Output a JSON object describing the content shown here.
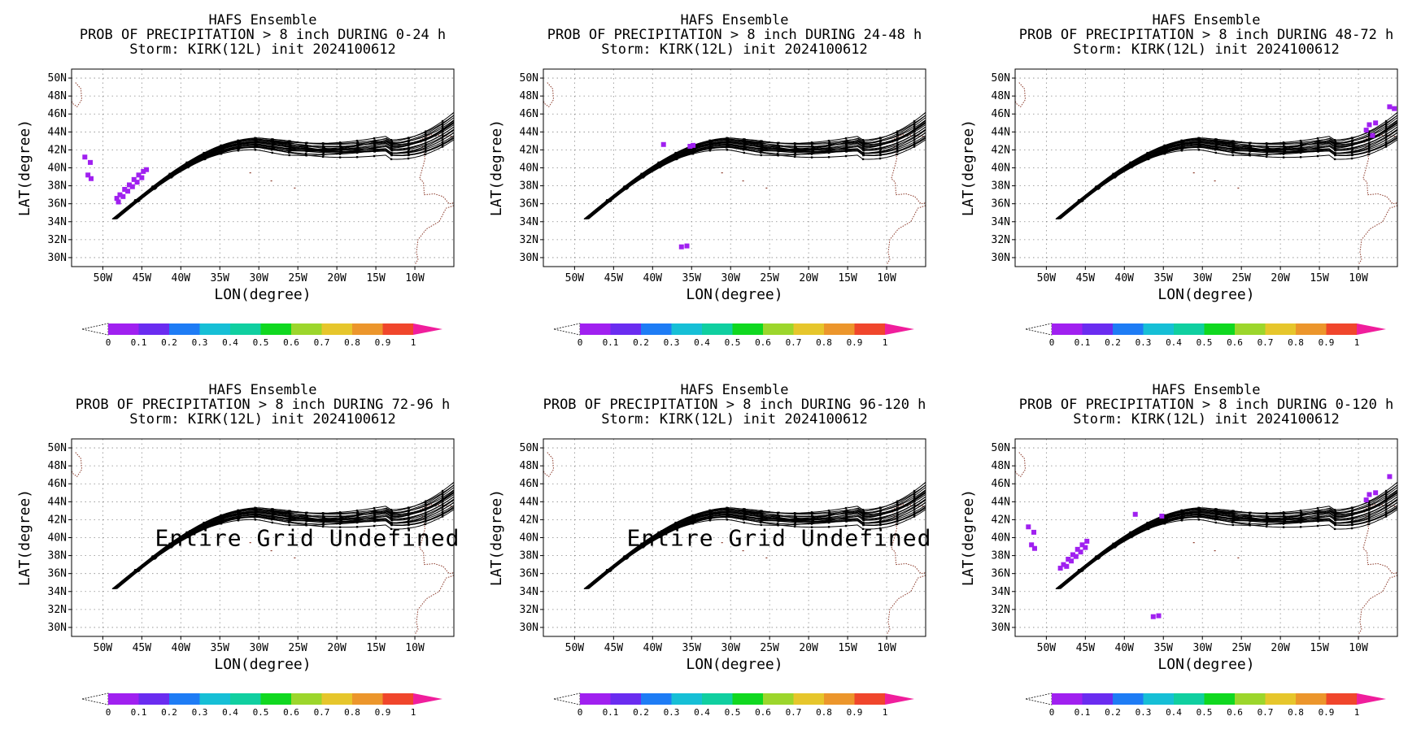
{
  "figure": {
    "bg": "#ffffff",
    "track_color": "#000000",
    "coast_color": "#8b3a2a",
    "grid_color": "#888888",
    "hit_color": "#a020f0"
  },
  "colorbar": {
    "colors": [
      "#a020f0",
      "#6a2cf0",
      "#1e7cf5",
      "#16bfd6",
      "#10cfa0",
      "#10d820",
      "#9cd62c",
      "#e6c62c",
      "#ec962c",
      "#f0462c",
      "#f01e9c"
    ],
    "ticks": [
      "0",
      "0.1",
      "0.2",
      "0.3",
      "0.4",
      "0.5",
      "0.6",
      "0.7",
      "0.8",
      "0.9",
      "1"
    ]
  },
  "chart_data": [
    {
      "type": "heatmap",
      "title": "HAFS Ensemble",
      "subtitle": "PROB OF PRECIPITATION > 8 inch DURING  0-24 h",
      "storm_line": "Storm: KIRK(12L) init 2024100612",
      "xlabel": "LON(degree)",
      "ylabel": "LAT(degree)",
      "x_ticks": [
        "50W",
        "45W",
        "40W",
        "35W",
        "30W",
        "25W",
        "20W",
        "15W",
        "10W"
      ],
      "y_ticks": [
        "50N",
        "48N",
        "46N",
        "44N",
        "42N",
        "40N",
        "38N",
        "36N",
        "34N",
        "32N",
        "30N"
      ],
      "xlim": [
        -54,
        -5
      ],
      "ylim": [
        29,
        51
      ],
      "grid": true,
      "undefined_text": "",
      "prob_points": [
        {
          "lon": -52.3,
          "lat": 41.2,
          "p": 0.05
        },
        {
          "lon": -51.6,
          "lat": 40.6,
          "p": 0.05
        },
        {
          "lon": -51.9,
          "lat": 39.2,
          "p": 0.05
        },
        {
          "lon": -51.5,
          "lat": 38.8,
          "p": 0.05
        },
        {
          "lon": -48.2,
          "lat": 36.6,
          "p": 0.05
        },
        {
          "lon": -47.8,
          "lat": 37.0,
          "p": 0.05
        },
        {
          "lon": -47.2,
          "lat": 37.6,
          "p": 0.05
        },
        {
          "lon": -46.6,
          "lat": 38.1,
          "p": 0.05
        },
        {
          "lon": -46.0,
          "lat": 38.7,
          "p": 0.05
        },
        {
          "lon": -45.4,
          "lat": 39.2,
          "p": 0.05
        },
        {
          "lon": -44.8,
          "lat": 39.6,
          "p": 0.05
        },
        {
          "lon": -47.4,
          "lat": 36.8,
          "p": 0.05
        },
        {
          "lon": -46.8,
          "lat": 37.4,
          "p": 0.05
        },
        {
          "lon": -46.2,
          "lat": 37.9,
          "p": 0.05
        },
        {
          "lon": -45.6,
          "lat": 38.4,
          "p": 0.05
        },
        {
          "lon": -45.0,
          "lat": 38.9,
          "p": 0.05
        },
        {
          "lon": -44.4,
          "lat": 39.8,
          "p": 0.05
        },
        {
          "lon": -48.0,
          "lat": 36.2,
          "p": 0.05
        }
      ]
    },
    {
      "type": "heatmap",
      "title": "HAFS Ensemble",
      "subtitle": "PROB OF PRECIPITATION > 8 inch DURING 24-48 h",
      "storm_line": "Storm: KIRK(12L) init 2024100612",
      "xlabel": "LON(degree)",
      "ylabel": "LAT(degree)",
      "x_ticks": [
        "50W",
        "45W",
        "40W",
        "35W",
        "30W",
        "25W",
        "20W",
        "15W",
        "10W"
      ],
      "y_ticks": [
        "50N",
        "48N",
        "46N",
        "44N",
        "42N",
        "40N",
        "38N",
        "36N",
        "34N",
        "32N",
        "30N"
      ],
      "xlim": [
        -54,
        -5
      ],
      "ylim": [
        29,
        51
      ],
      "grid": true,
      "undefined_text": "",
      "prob_points": [
        {
          "lon": -38.6,
          "lat": 42.6,
          "p": 0.05
        },
        {
          "lon": -35.2,
          "lat": 42.4,
          "p": 0.05
        },
        {
          "lon": -34.8,
          "lat": 42.5,
          "p": 0.05
        },
        {
          "lon": -36.3,
          "lat": 31.2,
          "p": 0.05
        },
        {
          "lon": -35.6,
          "lat": 31.3,
          "p": 0.05
        }
      ]
    },
    {
      "type": "heatmap",
      "title": "HAFS Ensemble",
      "subtitle": "PROB OF PRECIPITATION > 8 inch DURING 48-72 h",
      "storm_line": "Storm: KIRK(12L) init 2024100612",
      "xlabel": "LON(degree)",
      "ylabel": "LAT(degree)",
      "x_ticks": [
        "50W",
        "45W",
        "40W",
        "35W",
        "30W",
        "25W",
        "20W",
        "15W",
        "10W"
      ],
      "y_ticks": [
        "50N",
        "48N",
        "46N",
        "44N",
        "42N",
        "40N",
        "38N",
        "36N",
        "34N",
        "32N",
        "30N"
      ],
      "xlim": [
        -54,
        -5
      ],
      "ylim": [
        29,
        51
      ],
      "grid": true,
      "undefined_text": "",
      "prob_points": [
        {
          "lon": -6.0,
          "lat": 46.8,
          "p": 0.05
        },
        {
          "lon": -5.4,
          "lat": 46.6,
          "p": 0.05
        },
        {
          "lon": -8.6,
          "lat": 44.8,
          "p": 0.05
        },
        {
          "lon": -7.8,
          "lat": 45.0,
          "p": 0.05
        },
        {
          "lon": -9.0,
          "lat": 44.2,
          "p": 0.05
        },
        {
          "lon": -8.2,
          "lat": 43.6,
          "p": 0.05
        }
      ]
    },
    {
      "type": "heatmap",
      "title": "HAFS Ensemble",
      "subtitle": "PROB OF PRECIPITATION > 8 inch DURING 72-96 h",
      "storm_line": "Storm: KIRK(12L) init 2024100612",
      "xlabel": "LON(degree)",
      "ylabel": "LAT(degree)",
      "x_ticks": [
        "50W",
        "45W",
        "40W",
        "35W",
        "30W",
        "25W",
        "20W",
        "15W",
        "10W"
      ],
      "y_ticks": [
        "50N",
        "48N",
        "46N",
        "44N",
        "42N",
        "40N",
        "38N",
        "36N",
        "34N",
        "32N",
        "30N"
      ],
      "xlim": [
        -54,
        -5
      ],
      "ylim": [
        29,
        51
      ],
      "grid": true,
      "undefined_text": "Entire Grid Undefined",
      "prob_points": []
    },
    {
      "type": "heatmap",
      "title": "HAFS Ensemble",
      "subtitle": "PROB OF PRECIPITATION > 8 inch DURING 96-120 h",
      "storm_line": "Storm: KIRK(12L) init 2024100612",
      "xlabel": "LON(degree)",
      "ylabel": "LAT(degree)",
      "x_ticks": [
        "50W",
        "45W",
        "40W",
        "35W",
        "30W",
        "25W",
        "20W",
        "15W",
        "10W"
      ],
      "y_ticks": [
        "50N",
        "48N",
        "46N",
        "44N",
        "42N",
        "40N",
        "38N",
        "36N",
        "34N",
        "32N",
        "30N"
      ],
      "xlim": [
        -54,
        -5
      ],
      "ylim": [
        29,
        51
      ],
      "grid": true,
      "undefined_text": "Entire Grid Undefined",
      "prob_points": []
    },
    {
      "type": "heatmap",
      "title": "HAFS Ensemble",
      "subtitle": "PROB OF PRECIPITATION > 8 inch DURING 0-120 h",
      "storm_line": "Storm: KIRK(12L) init 2024100612",
      "xlabel": "LON(degree)",
      "ylabel": "LAT(degree)",
      "x_ticks": [
        "50W",
        "45W",
        "40W",
        "35W",
        "30W",
        "25W",
        "20W",
        "15W",
        "10W"
      ],
      "y_ticks": [
        "50N",
        "48N",
        "46N",
        "44N",
        "42N",
        "40N",
        "38N",
        "36N",
        "34N",
        "32N",
        "30N"
      ],
      "xlim": [
        -54,
        -5
      ],
      "ylim": [
        29,
        51
      ],
      "grid": true,
      "undefined_text": "",
      "prob_points": [
        {
          "lon": -52.3,
          "lat": 41.2,
          "p": 0.05
        },
        {
          "lon": -51.6,
          "lat": 40.6,
          "p": 0.05
        },
        {
          "lon": -51.9,
          "lat": 39.2,
          "p": 0.05
        },
        {
          "lon": -51.5,
          "lat": 38.8,
          "p": 0.05
        },
        {
          "lon": -48.2,
          "lat": 36.6,
          "p": 0.05
        },
        {
          "lon": -47.8,
          "lat": 37.0,
          "p": 0.05
        },
        {
          "lon": -47.2,
          "lat": 37.6,
          "p": 0.05
        },
        {
          "lon": -46.6,
          "lat": 38.1,
          "p": 0.05
        },
        {
          "lon": -46.0,
          "lat": 38.7,
          "p": 0.05
        },
        {
          "lon": -45.4,
          "lat": 39.2,
          "p": 0.05
        },
        {
          "lon": -44.8,
          "lat": 39.6,
          "p": 0.05
        },
        {
          "lon": -47.4,
          "lat": 36.8,
          "p": 0.05
        },
        {
          "lon": -46.8,
          "lat": 37.4,
          "p": 0.05
        },
        {
          "lon": -46.2,
          "lat": 37.9,
          "p": 0.05
        },
        {
          "lon": -45.6,
          "lat": 38.4,
          "p": 0.05
        },
        {
          "lon": -45.0,
          "lat": 38.9,
          "p": 0.05
        },
        {
          "lon": -38.6,
          "lat": 42.6,
          "p": 0.05
        },
        {
          "lon": -35.2,
          "lat": 42.4,
          "p": 0.05
        },
        {
          "lon": -36.3,
          "lat": 31.2,
          "p": 0.05
        },
        {
          "lon": -35.6,
          "lat": 31.3,
          "p": 0.05
        },
        {
          "lon": -6.0,
          "lat": 46.8,
          "p": 0.05
        },
        {
          "lon": -8.6,
          "lat": 44.8,
          "p": 0.05
        },
        {
          "lon": -7.8,
          "lat": 45.0,
          "p": 0.05
        },
        {
          "lon": -9.0,
          "lat": 44.2,
          "p": 0.05
        }
      ]
    }
  ]
}
